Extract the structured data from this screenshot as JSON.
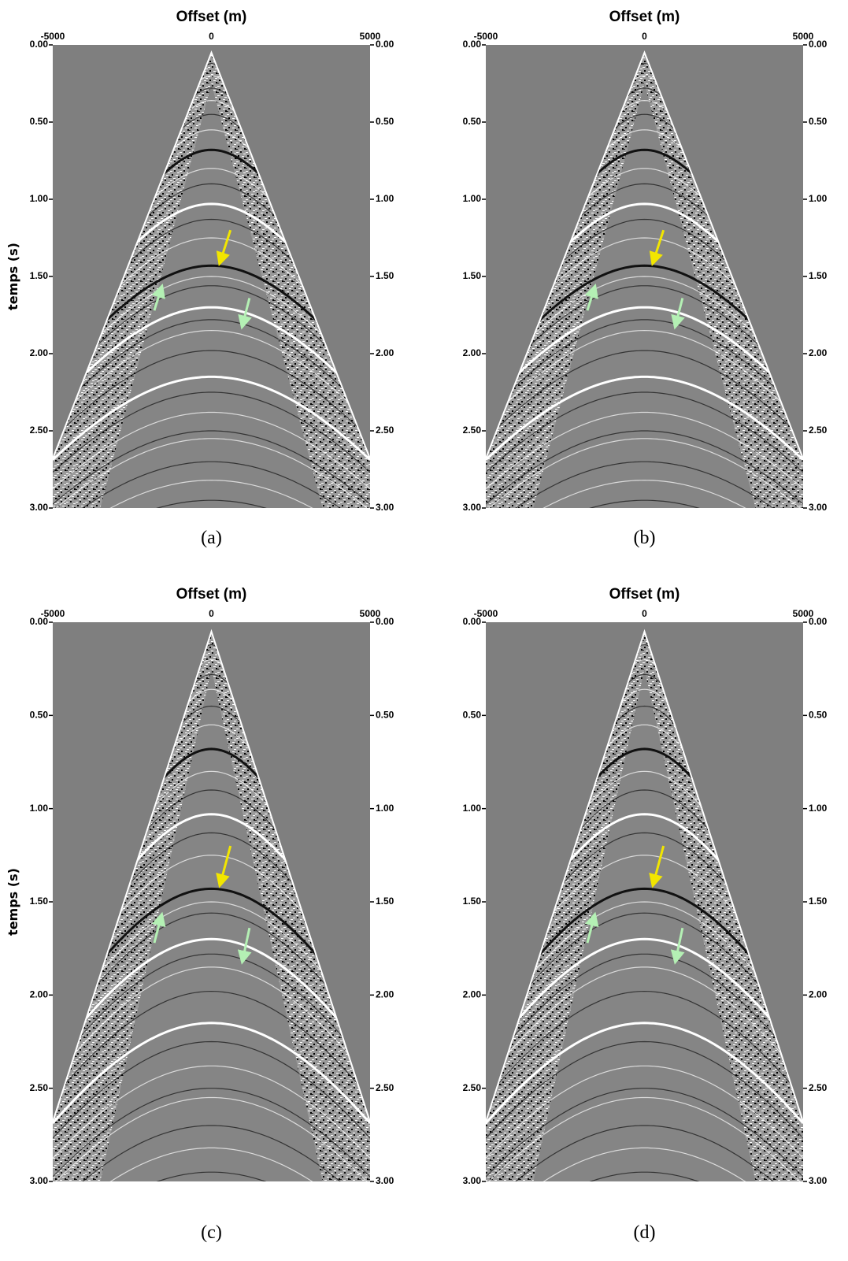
{
  "chart_data": [
    {
      "type": "seismic",
      "xlabel": "Offset (m)",
      "ylabel": "temps (s)",
      "caption": "(a)",
      "xlim": [
        -5000,
        5000
      ],
      "xticks": [
        -5000,
        0,
        5000
      ],
      "ylim": [
        0,
        3
      ],
      "yticks": [
        {
          "value": 0,
          "label": "0.00"
        },
        {
          "value": 0.5,
          "label": "0.50"
        },
        {
          "value": 1,
          "label": "1.00"
        },
        {
          "value": 1.5,
          "label": "1.50"
        },
        {
          "value": 2,
          "label": "2.00"
        },
        {
          "value": 2.5,
          "label": "2.50"
        },
        {
          "value": 3,
          "label": "3.00"
        }
      ]
    },
    {
      "type": "seismic",
      "xlabel": "Offset (m)",
      "caption": "(b)",
      "xlim": [
        -5000,
        5000
      ],
      "xticks": [
        -5000,
        0,
        5000
      ],
      "ylim": [
        0,
        3
      ],
      "yticks": [
        {
          "value": 0,
          "label": "0.00"
        },
        {
          "value": 0.5,
          "label": "0.50"
        },
        {
          "value": 1,
          "label": "1.00"
        },
        {
          "value": 1.5,
          "label": "1.50"
        },
        {
          "value": 2,
          "label": "2.00"
        },
        {
          "value": 2.5,
          "label": "2.50"
        },
        {
          "value": 3,
          "label": "3.00"
        }
      ]
    },
    {
      "type": "seismic",
      "xlabel": "Offset (m)",
      "ylabel": "temps (s)",
      "caption": "(c)",
      "xlim": [
        -5000,
        5000
      ],
      "xticks": [
        -5000,
        0,
        5000
      ],
      "ylim": [
        0,
        3
      ],
      "yticks": [
        {
          "value": 0,
          "label": "0.00"
        },
        {
          "value": 0.5,
          "label": "0.50"
        },
        {
          "value": 1,
          "label": "1.00"
        },
        {
          "value": 1.5,
          "label": "1.50"
        },
        {
          "value": 2,
          "label": "2.00"
        },
        {
          "value": 2.5,
          "label": "2.50"
        },
        {
          "value": 3,
          "label": "3.00"
        }
      ]
    },
    {
      "type": "seismic",
      "xlabel": "Offset (m)",
      "caption": "(d)",
      "xlim": [
        -5000,
        5000
      ],
      "xticks": [
        -5000,
        0,
        5000
      ],
      "ylim": [
        0,
        3
      ],
      "yticks": [
        {
          "value": 0,
          "label": "0.00"
        },
        {
          "value": 0.5,
          "label": "0.50"
        },
        {
          "value": 1,
          "label": "1.00"
        },
        {
          "value": 1.5,
          "label": "1.50"
        },
        {
          "value": 2,
          "label": "2.00"
        },
        {
          "value": 2.5,
          "label": "2.50"
        },
        {
          "value": 3,
          "label": "3.00"
        }
      ]
    }
  ]
}
